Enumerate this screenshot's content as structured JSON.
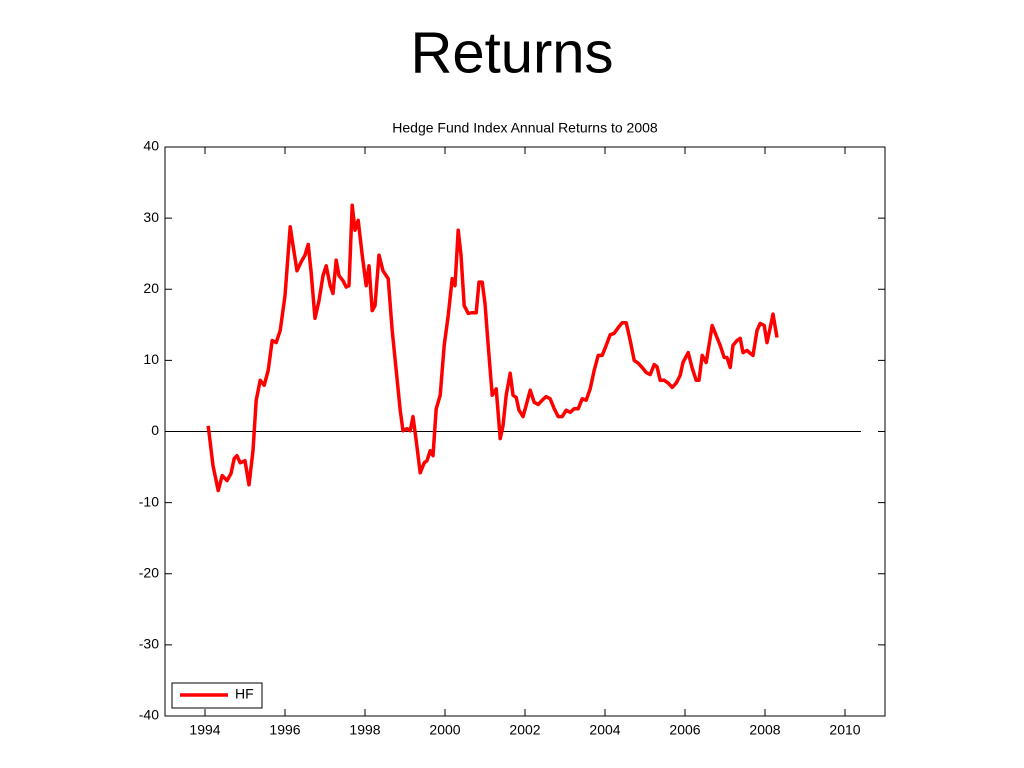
{
  "page_title": "Returns",
  "chart_data": {
    "type": "line",
    "title": "Hedge Fund Index Annual Returns to 2008",
    "xlim": [
      1993,
      2011
    ],
    "xticks": [
      1994,
      1996,
      1998,
      2000,
      2002,
      2004,
      2006,
      2008,
      2010
    ],
    "ylim": [
      -40,
      40
    ],
    "yticks": [
      -40,
      -30,
      -20,
      -10,
      0,
      10,
      20,
      30,
      40
    ],
    "legend": "lower left",
    "zero_line": {
      "y": 0,
      "x_end": 2010.4
    },
    "series": [
      {
        "name": "HF",
        "color": "#ff0000",
        "x": [
          1994.08,
          1994.2,
          1994.33,
          1994.43,
          1994.55,
          1994.65,
          1994.73,
          1994.8,
          1994.88,
          1995.0,
          1995.1,
          1995.2,
          1995.28,
          1995.38,
          1995.48,
          1995.58,
          1995.68,
          1995.78,
          1995.88,
          1996.0,
          1996.13,
          1996.2,
          1996.3,
          1996.4,
          1996.5,
          1996.58,
          1996.65,
          1996.75,
          1996.85,
          1996.95,
          1997.03,
          1997.13,
          1997.2,
          1997.28,
          1997.35,
          1997.45,
          1997.53,
          1997.6,
          1997.68,
          1997.75,
          1997.83,
          1997.93,
          1998.03,
          1998.1,
          1998.18,
          1998.25,
          1998.35,
          1998.45,
          1998.58,
          1998.68,
          1998.78,
          1998.88,
          1998.95,
          1999.05,
          1999.13,
          1999.2,
          1999.28,
          1999.38,
          1999.48,
          1999.55,
          1999.63,
          1999.7,
          1999.78,
          1999.88,
          1999.98,
          2000.08,
          2000.18,
          2000.25,
          2000.33,
          2000.4,
          2000.48,
          2000.58,
          2000.68,
          2000.78,
          2000.85,
          2000.93,
          2001.0,
          2001.08,
          2001.18,
          2001.28,
          2001.38,
          2001.45,
          2001.53,
          2001.63,
          2001.7,
          2001.78,
          2001.85,
          2001.95,
          2002.03,
          2002.13,
          2002.23,
          2002.33,
          2002.43,
          2002.53,
          2002.63,
          2002.73,
          2002.83,
          2002.93,
          2003.03,
          2003.13,
          2003.23,
          2003.33,
          2003.43,
          2003.53,
          2003.63,
          2003.73,
          2003.83,
          2003.93,
          2004.03,
          2004.13,
          2004.23,
          2004.33,
          2004.43,
          2004.53,
          2004.63,
          2004.73,
          2004.83,
          2004.93,
          2005.03,
          2005.13,
          2005.23,
          2005.3,
          2005.38,
          2005.48,
          2005.58,
          2005.68,
          2005.78,
          2005.88,
          2005.95,
          2006.08,
          2006.18,
          2006.28,
          2006.35,
          2006.43,
          2006.53,
          2006.68,
          2006.78,
          2006.88,
          2006.98,
          2007.05,
          2007.13,
          2007.2,
          2007.3,
          2007.38,
          2007.45,
          2007.55,
          2007.63,
          2007.7,
          2007.8,
          2007.88,
          2007.98,
          2008.05,
          2008.13,
          2008.2,
          2008.3
        ],
        "values": [
          0.8,
          -4.8,
          -8.3,
          -6.2,
          -6.9,
          -5.9,
          -3.8,
          -3.4,
          -4.4,
          -4.1,
          -7.5,
          -2.7,
          4.4,
          7.2,
          6.5,
          8.6,
          12.8,
          12.5,
          14.2,
          19.1,
          28.8,
          26.2,
          22.6,
          23.8,
          24.8,
          26.3,
          22.6,
          15.9,
          18.4,
          21.9,
          23.3,
          20.5,
          19.4,
          24.1,
          21.9,
          21.2,
          20.3,
          20.5,
          31.8,
          28.3,
          29.7,
          24.8,
          20.5,
          23.3,
          17.0,
          17.7,
          24.8,
          22.6,
          21.5,
          14.2,
          8.6,
          3.0,
          0.1,
          0.4,
          0.1,
          2.1,
          -1.3,
          -5.8,
          -4.4,
          -4.1,
          -2.7,
          -3.4,
          3.2,
          5.1,
          12.1,
          16.3,
          21.5,
          20.5,
          28.3,
          24.8,
          17.7,
          16.6,
          16.7,
          16.7,
          21.0,
          21.0,
          18.0,
          12.1,
          5.1,
          6.0,
          -1.0,
          0.8,
          5.1,
          8.2,
          5.1,
          4.8,
          3.0,
          2.1,
          3.7,
          5.8,
          4.1,
          3.8,
          4.4,
          4.9,
          4.6,
          3.2,
          2.1,
          2.1,
          3.0,
          2.7,
          3.2,
          3.2,
          4.6,
          4.4,
          6.0,
          8.6,
          10.7,
          10.7,
          12.1,
          13.6,
          13.8,
          14.6,
          15.3,
          15.3,
          12.8,
          10.0,
          9.6,
          9.0,
          8.3,
          8.0,
          9.4,
          9.1,
          7.2,
          7.2,
          6.8,
          6.2,
          6.8,
          7.9,
          9.7,
          11.1,
          8.9,
          7.2,
          7.2,
          10.7,
          9.7,
          14.9,
          13.5,
          12.1,
          10.4,
          10.4,
          9.0,
          12.1,
          12.8,
          13.1,
          11.1,
          11.4,
          11.0,
          10.7,
          14.2,
          15.2,
          14.9,
          12.5,
          14.6,
          16.5,
          13.2
        ]
      }
    ]
  }
}
